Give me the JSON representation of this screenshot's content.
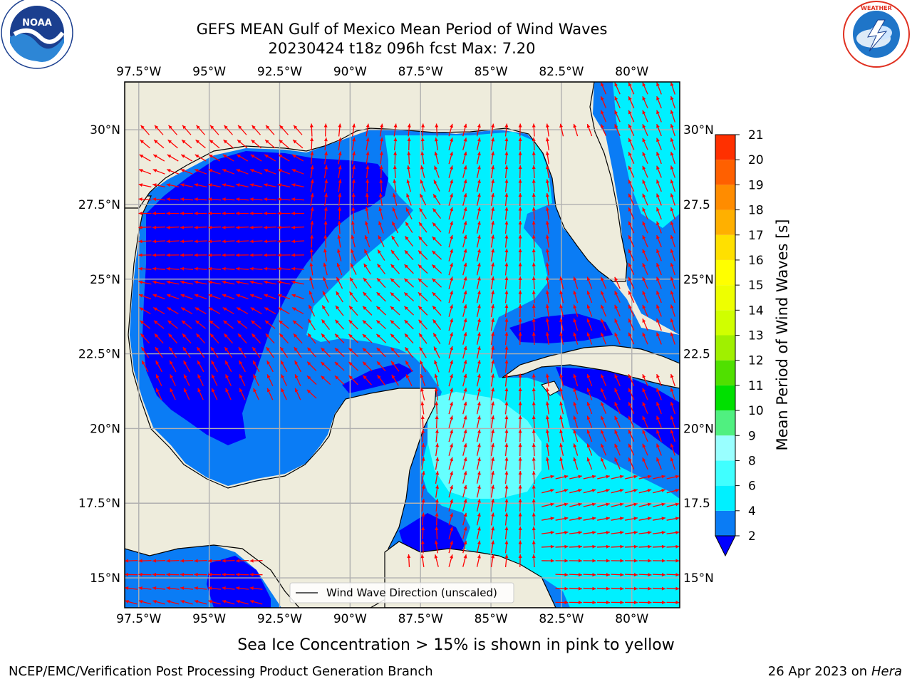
{
  "header": {
    "title_line1": "GEFS MEAN Gulf of Mexico Mean Period of Wind Waves",
    "title_line2": "20230424 t18z 096h fcst   Max: 7.20"
  },
  "logos": {
    "left": {
      "name": "NOAA",
      "ring_text": "NATIONAL OCEANIC AND ATMOSPHERIC ADMINISTRATION · U.S. DEPARTMENT OF COMMERCE"
    },
    "right": {
      "name": "NATIONAL WEATHER SERVICE"
    }
  },
  "map": {
    "lon_ticks": [
      "97.5°W",
      "95°W",
      "92.5°W",
      "90°W",
      "87.5°W",
      "85°W",
      "82.5°W",
      "80°W"
    ],
    "lon_values": [
      -97.5,
      -95,
      -92.5,
      -90,
      -87.5,
      -85,
      -82.5,
      -80
    ],
    "lat_ticks": [
      "30°N",
      "27.5°N",
      "25°N",
      "22.5°N",
      "20°N",
      "17.5°N",
      "15°N"
    ],
    "lat_ticks_right": [
      "30°N",
      "27.5",
      "25°N",
      "22.5",
      "20°N",
      "17.5",
      "15°N"
    ],
    "lat_values": [
      30,
      27.5,
      25,
      22.5,
      20,
      17.5,
      15
    ],
    "extent": {
      "lon_min": -98,
      "lon_max": -78.3,
      "lat_min": 14.0,
      "lat_max": 31.6
    },
    "legend_label": "Wind Wave Direction (unscaled)",
    "colors": {
      "land": "#eeecdc",
      "ocean_2_4": "#0a7cf5",
      "ocean_0_2": "#0000ff",
      "ocean_4_6": "#00f0ff",
      "ocean_6_8": "#66ffff",
      "arrow": "#ff0000",
      "grid": "#b0b0b0"
    }
  },
  "colorbar": {
    "label": "Mean Period of Wind Waves [s]",
    "ticks": [
      "2",
      "4",
      "6",
      "8",
      "9",
      "10",
      "11",
      "12",
      "13",
      "14",
      "15",
      "16",
      "17",
      "18",
      "19",
      "20",
      "21"
    ],
    "colors": [
      "#0a7cf5",
      "#00f0ff",
      "#40ffff",
      "#99ffff",
      "#50f080",
      "#00e000",
      "#50e000",
      "#a0f000",
      "#d0ff00",
      "#eeff00",
      "#ffff00",
      "#ffe000",
      "#ffb000",
      "#ff8c00",
      "#ff6000",
      "#ff3000",
      "#ff0000"
    ],
    "under_color": "#0000ff"
  },
  "footer": {
    "caption": "Sea Ice Concentration > 15% is shown in pink to yellow",
    "left": "NCEP/EMC/Verification Post Processing Product Generation Branch",
    "right_date": "26 Apr 2023 on ",
    "right_machine": "Hera"
  }
}
